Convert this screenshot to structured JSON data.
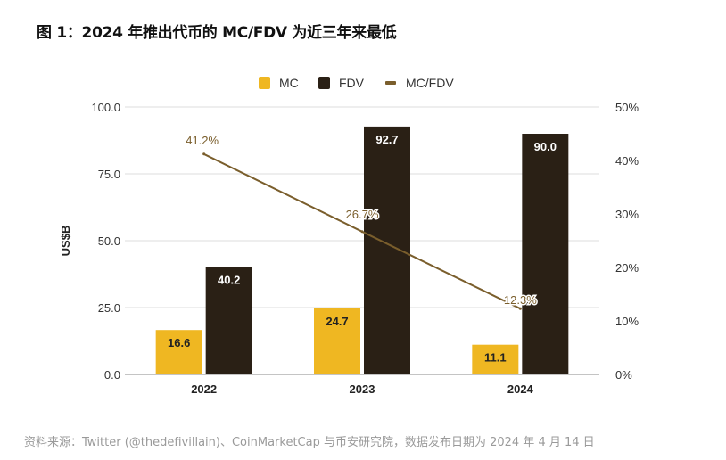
{
  "title": "图 1：2024 年推出代币的 MC/FDV 为近三年来最低",
  "source": "资料来源：Twitter (@thedefivillain)、CoinMarketCap 与币安研究院，数据发布日期为 2024 年 4 月 14 日",
  "chart_data": {
    "type": "bar+line",
    "categories": [
      "2022",
      "2023",
      "2024"
    ],
    "series": [
      {
        "name": "MC",
        "type": "bar",
        "axis": "left",
        "color": "#EFB722",
        "values": [
          16.6,
          24.7,
          11.1
        ],
        "labels": [
          "16.6",
          "24.7",
          "11.1"
        ]
      },
      {
        "name": "FDV",
        "type": "bar",
        "axis": "left",
        "color": "#2A2015",
        "values": [
          40.2,
          92.7,
          90.0
        ],
        "labels": [
          "40.2",
          "92.7",
          "90.0"
        ]
      },
      {
        "name": "MC/FDV",
        "type": "line",
        "axis": "right",
        "color": "#7A5E2C",
        "values": [
          41.2,
          26.7,
          12.3
        ],
        "labels": [
          "41.2%",
          "26.7%",
          "12.3%"
        ]
      }
    ],
    "ylabel": "US$B",
    "ylim": [
      0,
      100
    ],
    "yticks": [
      "0.0",
      "25.0",
      "50.0",
      "75.0",
      "100.0"
    ],
    "y2lim": [
      0,
      50
    ],
    "y2ticks": [
      "0%",
      "10%",
      "20%",
      "30%",
      "40%",
      "50%"
    ],
    "grid": true,
    "legend": "top"
  }
}
